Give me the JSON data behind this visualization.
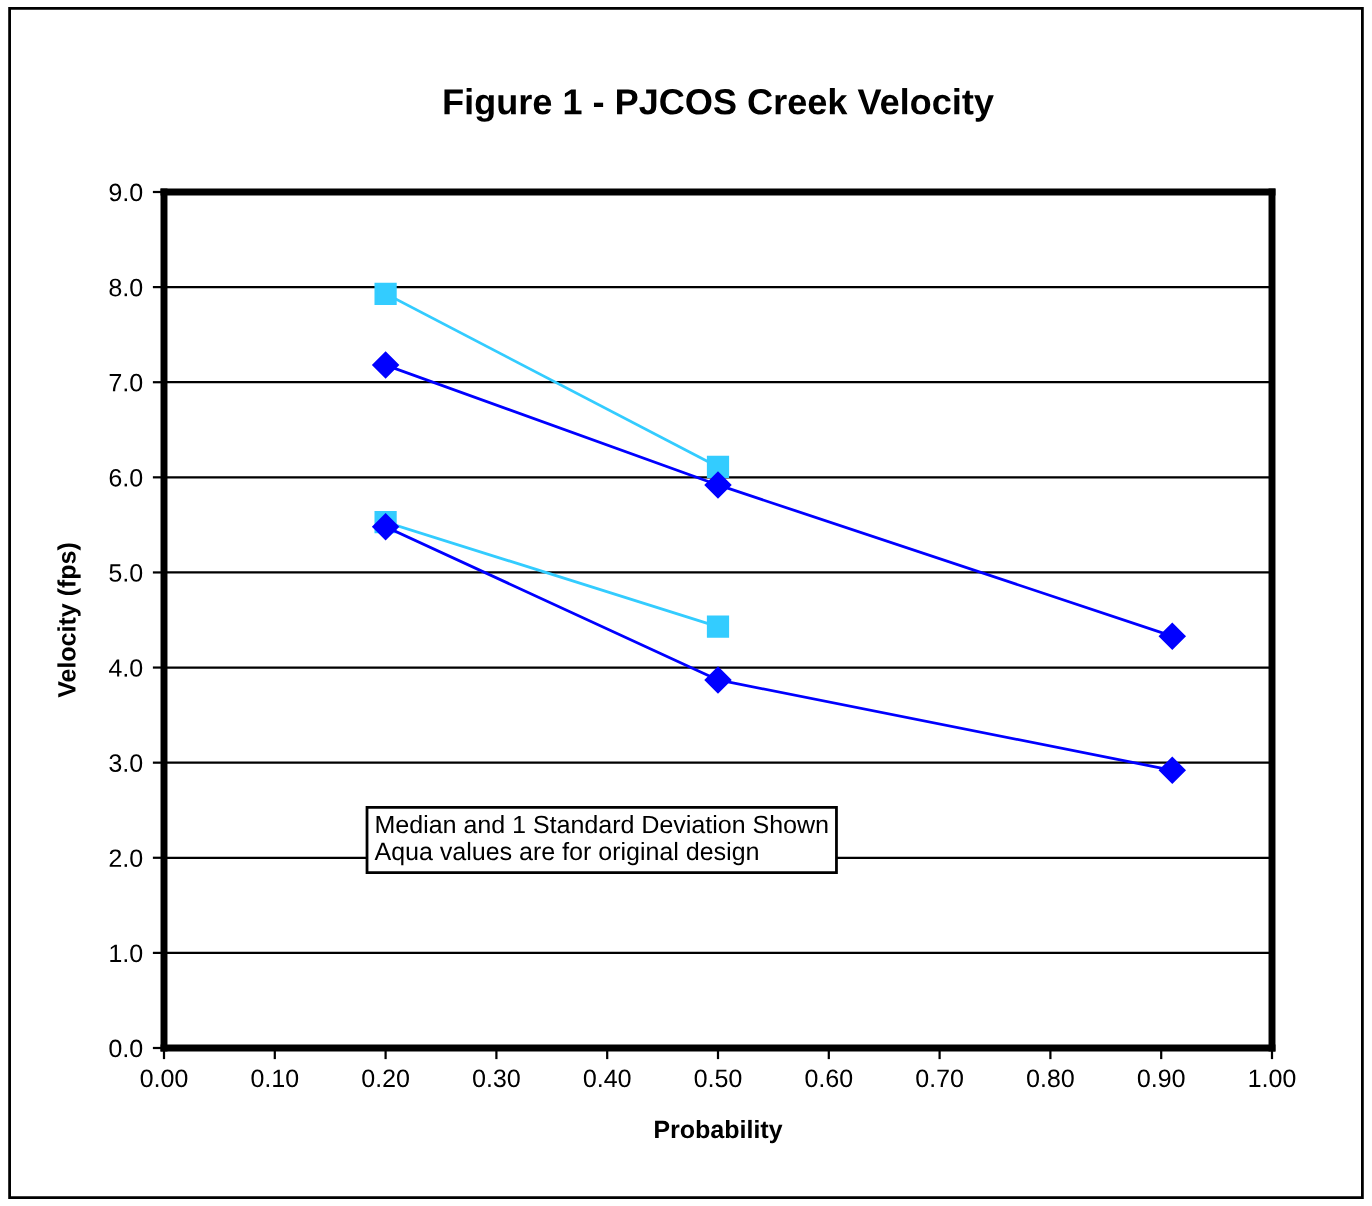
{
  "chart_data": {
    "type": "line",
    "title": "Figure 1 - PJCOS Creek Velocity",
    "xlabel": "Probability",
    "ylabel": "Velocity (fps)",
    "annotations": [
      "Median and 1 Standard Deviation Shown",
      "Aqua values are for original design"
    ],
    "series": [
      {
        "color": "#0000ff",
        "x": [
          0.2,
          0.5,
          0.91
        ],
        "values": [
          7.18,
          5.92,
          4.33
        ],
        "marker": "diamond"
      },
      {
        "color": "#0000ff",
        "x": [
          0.2,
          0.5,
          0.91
        ],
        "values": [
          5.48,
          3.87,
          2.92
        ],
        "marker": "diamond"
      },
      {
        "color": "#33ccff",
        "x": [
          0.2,
          0.5
        ],
        "values": [
          7.93,
          6.11
        ],
        "marker": "square"
      },
      {
        "color": "#33ccff",
        "x": [
          0.2,
          0.5
        ],
        "values": [
          5.53,
          4.43
        ],
        "marker": "square"
      }
    ],
    "xlim": [
      0,
      1
    ],
    "xticks": [
      {
        "value": 0,
        "label": "0.00"
      },
      {
        "value": 0.1,
        "label": "0.10"
      },
      {
        "value": 0.2,
        "label": "0.20"
      },
      {
        "value": 0.3,
        "label": "0.30"
      },
      {
        "value": 0.4,
        "label": "0.40"
      },
      {
        "value": 0.5,
        "label": "0.50"
      },
      {
        "value": 0.6,
        "label": "0.60"
      },
      {
        "value": 0.7,
        "label": "0.70"
      },
      {
        "value": 0.8,
        "label": "0.80"
      },
      {
        "value": 0.9,
        "label": "0.90"
      },
      {
        "value": 1,
        "label": "1.00"
      }
    ],
    "ylim": [
      0,
      9
    ],
    "yticks": [
      {
        "value": 0,
        "label": "0.0"
      },
      {
        "value": 1,
        "label": "1.0"
      },
      {
        "value": 2,
        "label": "2.0"
      },
      {
        "value": 3,
        "label": "3.0"
      },
      {
        "value": 4,
        "label": "4.0"
      },
      {
        "value": 5,
        "label": "5.0"
      },
      {
        "value": 6,
        "label": "6.0"
      },
      {
        "value": 7,
        "label": "7.0"
      },
      {
        "value": 8,
        "label": "8.0"
      },
      {
        "value": 9,
        "label": "9.0"
      }
    ],
    "grid": "y",
    "legend": false
  }
}
